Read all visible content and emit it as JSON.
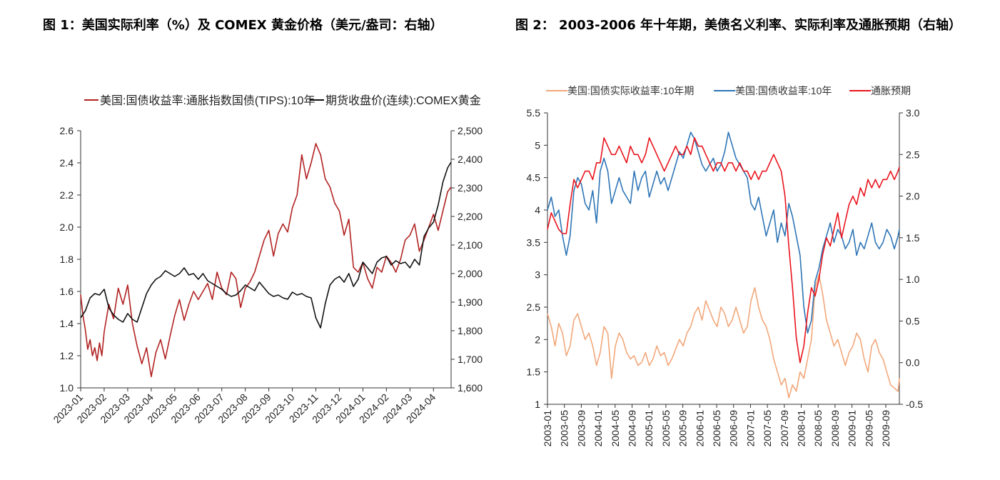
{
  "figure1": {
    "title": "图 1：美国实际利率（%）及 COMEX 黄金价格（美元/盎司：右轴）"
  },
  "figure2": {
    "title": "图 2： 2003-2006 年十年期，美债名义利率、实际利率及通胀预期（右轴）"
  },
  "chart_data": [
    {
      "type": "line",
      "title": "图 1：美国实际利率（%）及 COMEX 黄金价格（美元/盎司：右轴）",
      "x_ticks": [
        "2023-01",
        "2023-02",
        "2023-03",
        "2023-04",
        "2023-05",
        "2023-06",
        "2023-07",
        "2023-08",
        "2023-09",
        "2023-10",
        "2023-11",
        "2023-12",
        "2024-01",
        "2024-02",
        "2024-03",
        "2024-04"
      ],
      "y_left": {
        "range": [
          1.0,
          2.6
        ],
        "ticks": [
          "1.0",
          "1.2",
          "1.4",
          "1.6",
          "1.8",
          "2.0",
          "2.2",
          "2.4",
          "2.6"
        ]
      },
      "y_right": {
        "range": [
          1600,
          2500
        ],
        "ticks": [
          "1,600",
          "1,700",
          "1,800",
          "1,900",
          "2,000",
          "2,100",
          "2,200",
          "2,300",
          "2,400",
          "2,500"
        ]
      },
      "series": [
        {
          "name": "美国:国债收益率:通胀指数国债(TIPS):10年",
          "axis": "left",
          "color": "#b22222",
          "x": [
            0,
            0.1,
            0.2,
            0.3,
            0.4,
            0.5,
            0.6,
            0.7,
            0.8,
            0.9,
            1.0,
            1.2,
            1.4,
            1.6,
            1.8,
            2.0,
            2.2,
            2.4,
            2.6,
            2.8,
            3.0,
            3.2,
            3.4,
            3.6,
            3.8,
            4.0,
            4.2,
            4.4,
            4.6,
            4.8,
            5.0,
            5.2,
            5.4,
            5.6,
            5.8,
            6.0,
            6.2,
            6.4,
            6.6,
            6.8,
            7.0,
            7.2,
            7.4,
            7.6,
            7.8,
            8.0,
            8.2,
            8.4,
            8.6,
            8.8,
            9.0,
            9.2,
            9.4,
            9.6,
            9.8,
            10.0,
            10.2,
            10.4,
            10.6,
            10.8,
            11.0,
            11.2,
            11.4,
            11.6,
            11.8,
            12.0,
            12.2,
            12.4,
            12.6,
            12.8,
            13.0,
            13.2,
            13.4,
            13.6,
            13.8,
            14.0,
            14.2,
            14.4,
            14.6,
            14.8,
            15.0,
            15.2,
            15.4,
            15.6,
            15.75
          ],
          "values": [
            1.58,
            1.45,
            1.36,
            1.24,
            1.3,
            1.2,
            1.25,
            1.17,
            1.28,
            1.2,
            1.35,
            1.52,
            1.43,
            1.62,
            1.52,
            1.64,
            1.4,
            1.26,
            1.15,
            1.25,
            1.07,
            1.22,
            1.3,
            1.18,
            1.32,
            1.45,
            1.55,
            1.42,
            1.52,
            1.6,
            1.55,
            1.6,
            1.65,
            1.55,
            1.72,
            1.62,
            1.58,
            1.72,
            1.68,
            1.5,
            1.62,
            1.66,
            1.72,
            1.82,
            1.92,
            1.98,
            1.82,
            1.96,
            2.02,
            1.97,
            2.12,
            2.2,
            2.45,
            2.3,
            2.4,
            2.52,
            2.45,
            2.3,
            2.25,
            2.15,
            2.1,
            1.95,
            2.05,
            1.75,
            1.72,
            1.78,
            1.68,
            1.62,
            1.75,
            1.72,
            1.82,
            1.78,
            1.72,
            1.8,
            1.92,
            1.95,
            2.02,
            1.85,
            1.92,
            2.0,
            2.08,
            1.98,
            2.1,
            2.22,
            2.25
          ]
        },
        {
          "name": "期货收盘价(连续):COMEX黄金",
          "axis": "right",
          "color": "#111111",
          "x": [
            0,
            0.2,
            0.4,
            0.6,
            0.8,
            1.0,
            1.2,
            1.4,
            1.6,
            1.8,
            2.0,
            2.2,
            2.4,
            2.6,
            2.8,
            3.0,
            3.2,
            3.4,
            3.6,
            3.8,
            4.0,
            4.2,
            4.4,
            4.6,
            4.8,
            5.0,
            5.2,
            5.4,
            5.6,
            5.8,
            6.0,
            6.2,
            6.4,
            6.6,
            6.8,
            7.0,
            7.2,
            7.4,
            7.6,
            7.8,
            8.0,
            8.2,
            8.4,
            8.6,
            8.8,
            9.0,
            9.2,
            9.4,
            9.6,
            9.8,
            10.0,
            10.2,
            10.4,
            10.6,
            10.8,
            11.0,
            11.2,
            11.4,
            11.6,
            11.8,
            12.0,
            12.2,
            12.4,
            12.6,
            12.8,
            13.0,
            13.2,
            13.4,
            13.6,
            13.8,
            14.0,
            14.2,
            14.4,
            14.6,
            14.8,
            15.0,
            15.2,
            15.4,
            15.6,
            15.75
          ],
          "values": [
            1845,
            1870,
            1915,
            1930,
            1925,
            1945,
            1880,
            1855,
            1840,
            1830,
            1860,
            1840,
            1830,
            1880,
            1930,
            1960,
            1980,
            1990,
            2010,
            2000,
            1990,
            2000,
            2020,
            1995,
            2000,
            1980,
            2000,
            1975,
            1965,
            1955,
            1945,
            1930,
            1920,
            1925,
            1940,
            1960,
            1950,
            1940,
            1970,
            1950,
            1930,
            1920,
            1925,
            1915,
            1910,
            1935,
            1925,
            1930,
            1920,
            1915,
            1845,
            1810,
            1895,
            1960,
            1980,
            1990,
            1970,
            2000,
            1955,
            1980,
            2040,
            2020,
            2000,
            2040,
            2055,
            2060,
            2030,
            2045,
            2035,
            2040,
            2020,
            2050,
            2030,
            2130,
            2160,
            2180,
            2240,
            2320,
            2370,
            2390
          ]
        }
      ]
    },
    {
      "type": "line",
      "title": "图 2： 2003-2006 年十年期，美债名义利率、实际利率及通胀预期（右轴）",
      "x_ticks": [
        "2003-01",
        "2003-05",
        "2003-09",
        "2004-01",
        "2004-05",
        "2004-09",
        "2005-01",
        "2005-05",
        "2005-09",
        "2006-01",
        "2006-05",
        "2006-09",
        "2007-01",
        "2007-05",
        "2007-09",
        "2008-01",
        "2008-05",
        "2008-09",
        "2009-01",
        "2009-05",
        "2009-09"
      ],
      "y_left": {
        "range": [
          1,
          5.5
        ],
        "ticks": [
          "1",
          "1.5",
          "2",
          "2.5",
          "3",
          "3.5",
          "4",
          "4.5",
          "5",
          "5.5"
        ]
      },
      "y_right": {
        "range": [
          -0.5,
          3.0
        ],
        "ticks": [
          "-0.5",
          "0.0",
          "0.5",
          "1.0",
          "1.5",
          "2.0",
          "2.5",
          "3.0"
        ]
      },
      "series": [
        {
          "name": "美国:国债实际收益率:10年期",
          "axis": "left",
          "color": "#f2a77a",
          "x": [
            0,
            0.3,
            0.6,
            0.9,
            1.2,
            1.5,
            1.8,
            2.1,
            2.4,
            2.7,
            3.0,
            3.3,
            3.6,
            3.9,
            4.2,
            4.5,
            4.8,
            5.1,
            5.4,
            5.7,
            6.0,
            6.3,
            6.6,
            6.9,
            7.2,
            7.5,
            7.8,
            8.1,
            8.4,
            8.7,
            9.0,
            9.3,
            9.6,
            9.9,
            10.2,
            10.5,
            10.8,
            11.1,
            11.4,
            11.7,
            12.0,
            12.3,
            12.6,
            12.9,
            13.2,
            13.5,
            13.8,
            14.1,
            14.4,
            14.7,
            15.0,
            15.3,
            15.6,
            15.9,
            16.2,
            16.5,
            16.8,
            17.1,
            17.4,
            17.7,
            18.0,
            18.3,
            18.6,
            18.9,
            19.2,
            19.5,
            19.8,
            20.1,
            20.4,
            20.7,
            21.0,
            21.3,
            21.6,
            21.9,
            22.2,
            22.5,
            22.8,
            23.1,
            23.4,
            23.7,
            24.0,
            24.3,
            24.6,
            24.9,
            25.2,
            25.5,
            25.8,
            26.1,
            26.4,
            26.7,
            27.0,
            27.3,
            27.6,
            27.9,
            28.0
          ],
          "values": [
            2.4,
            2.2,
            1.9,
            2.25,
            2.1,
            1.75,
            1.9,
            2.3,
            2.4,
            2.2,
            2.0,
            2.1,
            1.9,
            1.6,
            1.8,
            2.2,
            2.1,
            1.4,
            1.9,
            2.1,
            2.0,
            1.8,
            1.7,
            1.75,
            1.6,
            1.65,
            1.8,
            1.6,
            1.7,
            1.9,
            1.75,
            1.8,
            1.6,
            1.7,
            1.85,
            2.0,
            1.9,
            2.1,
            2.2,
            2.4,
            2.5,
            2.3,
            2.6,
            2.45,
            2.3,
            2.2,
            2.5,
            2.4,
            2.2,
            2.3,
            2.5,
            2.3,
            2.1,
            2.2,
            2.6,
            2.8,
            2.5,
            2.3,
            2.2,
            2.0,
            1.7,
            1.5,
            1.3,
            1.4,
            1.1,
            1.3,
            1.2,
            1.5,
            1.4,
            1.7,
            2.0,
            2.8,
            3.0,
            2.7,
            2.3,
            2.1,
            1.9,
            2.0,
            1.8,
            1.6,
            1.8,
            1.9,
            2.1,
            2.0,
            1.7,
            1.5,
            1.9,
            2.0,
            1.8,
            1.7,
            1.5,
            1.3,
            1.25,
            1.2,
            1.4
          ]
        },
        {
          "name": "美国:国债收益率:10年",
          "axis": "left",
          "color": "#2e75b6",
          "x": [
            0,
            0.3,
            0.6,
            0.9,
            1.2,
            1.5,
            1.8,
            2.1,
            2.4,
            2.7,
            3.0,
            3.3,
            3.6,
            3.9,
            4.2,
            4.5,
            4.8,
            5.1,
            5.4,
            5.7,
            6.0,
            6.3,
            6.6,
            6.9,
            7.2,
            7.5,
            7.8,
            8.1,
            8.4,
            8.7,
            9.0,
            9.3,
            9.6,
            9.9,
            10.2,
            10.5,
            10.8,
            11.1,
            11.4,
            11.7,
            12.0,
            12.3,
            12.6,
            12.9,
            13.2,
            13.5,
            13.8,
            14.1,
            14.4,
            14.7,
            15.0,
            15.3,
            15.6,
            15.9,
            16.2,
            16.5,
            16.8,
            17.1,
            17.4,
            17.7,
            18.0,
            18.3,
            18.6,
            18.9,
            19.2,
            19.5,
            19.8,
            20.1,
            20.4,
            20.7,
            21.0,
            21.3,
            21.6,
            21.9,
            22.2,
            22.5,
            22.8,
            23.1,
            23.4,
            23.7,
            24.0,
            24.3,
            24.6,
            24.9,
            25.2,
            25.5,
            25.8,
            26.1,
            26.4,
            26.7,
            27.0,
            27.3,
            27.6,
            27.9,
            28.0
          ],
          "values": [
            4.0,
            4.2,
            3.9,
            4.0,
            3.6,
            3.3,
            3.6,
            4.3,
            4.5,
            4.4,
            4.1,
            4.0,
            4.3,
            3.8,
            4.6,
            4.8,
            4.6,
            4.1,
            4.3,
            4.5,
            4.3,
            4.2,
            4.1,
            4.6,
            4.3,
            4.5,
            4.6,
            4.2,
            4.4,
            4.6,
            4.4,
            4.5,
            4.3,
            4.5,
            4.7,
            4.9,
            4.8,
            5.0,
            5.2,
            5.1,
            4.9,
            4.7,
            4.6,
            4.7,
            4.8,
            4.6,
            4.7,
            4.9,
            5.2,
            5.0,
            4.8,
            4.7,
            4.6,
            4.5,
            4.1,
            4.0,
            4.2,
            3.9,
            3.6,
            3.8,
            4.0,
            3.5,
            3.8,
            3.6,
            4.1,
            3.9,
            3.6,
            3.3,
            2.5,
            2.1,
            2.3,
            2.9,
            3.1,
            3.4,
            3.6,
            3.8,
            3.5,
            3.7,
            3.6,
            3.4,
            3.5,
            3.7,
            3.3,
            3.5,
            3.4,
            3.6,
            3.8,
            3.5,
            3.4,
            3.5,
            3.7,
            3.6,
            3.4,
            3.6,
            3.7
          ]
        },
        {
          "name": "通胀预期",
          "axis": "right",
          "color": "#e8141c",
          "x": [
            0,
            0.3,
            0.6,
            0.9,
            1.2,
            1.5,
            1.8,
            2.1,
            2.4,
            2.7,
            3.0,
            3.3,
            3.6,
            3.9,
            4.2,
            4.5,
            4.8,
            5.1,
            5.4,
            5.7,
            6.0,
            6.3,
            6.6,
            6.9,
            7.2,
            7.5,
            7.8,
            8.1,
            8.4,
            8.7,
            9.0,
            9.3,
            9.6,
            9.9,
            10.2,
            10.5,
            10.8,
            11.1,
            11.4,
            11.7,
            12.0,
            12.3,
            12.6,
            12.9,
            13.2,
            13.5,
            13.8,
            14.1,
            14.4,
            14.7,
            15.0,
            15.3,
            15.6,
            15.9,
            16.2,
            16.5,
            16.8,
            17.1,
            17.4,
            17.7,
            18.0,
            18.3,
            18.6,
            18.9,
            19.2,
            19.5,
            19.8,
            20.1,
            20.4,
            20.7,
            21.0,
            21.3,
            21.6,
            21.9,
            22.2,
            22.5,
            22.8,
            23.1,
            23.4,
            23.7,
            24.0,
            24.3,
            24.6,
            24.9,
            25.2,
            25.5,
            25.8,
            26.1,
            26.4,
            26.7,
            27.0,
            27.3,
            27.6,
            27.9,
            28.0
          ],
          "values": [
            1.6,
            1.8,
            1.7,
            1.6,
            1.55,
            1.55,
            1.9,
            2.2,
            2.1,
            2.2,
            2.3,
            2.3,
            2.2,
            2.4,
            2.4,
            2.7,
            2.6,
            2.5,
            2.5,
            2.6,
            2.5,
            2.4,
            2.6,
            2.5,
            2.5,
            2.4,
            2.5,
            2.7,
            2.6,
            2.5,
            2.4,
            2.3,
            2.4,
            2.5,
            2.6,
            2.5,
            2.5,
            2.6,
            2.5,
            2.7,
            2.6,
            2.6,
            2.5,
            2.4,
            2.3,
            2.4,
            2.4,
            2.3,
            2.4,
            2.4,
            2.3,
            2.4,
            2.3,
            2.3,
            2.2,
            2.3,
            2.2,
            2.3,
            2.3,
            2.4,
            2.5,
            2.4,
            2.3,
            2.0,
            1.4,
            0.9,
            0.3,
            0.0,
            0.2,
            0.6,
            0.9,
            0.8,
            1.0,
            1.3,
            1.5,
            1.4,
            1.6,
            1.8,
            1.5,
            1.7,
            1.9,
            2.0,
            1.9,
            2.1,
            2.0,
            2.2,
            2.1,
            2.2,
            2.1,
            2.2,
            2.2,
            2.3,
            2.2,
            2.3,
            2.35
          ]
        }
      ]
    }
  ]
}
